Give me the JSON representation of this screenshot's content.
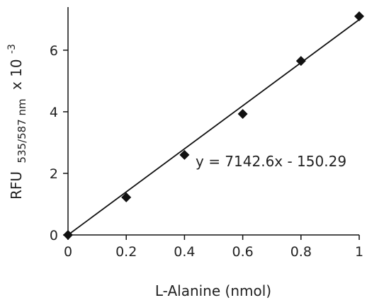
{
  "chart_data": {
    "type": "scatter",
    "title": "",
    "xlabel": "L-Alanine (nmol)",
    "ylabel": {
      "main": "RFU",
      "subscript": "535/587 nm",
      "suffix": "x 10",
      "superscript": "-3"
    },
    "xlim": [
      0,
      1
    ],
    "ylim": [
      0,
      7.4
    ],
    "xticks": [
      "0",
      "0.2",
      "0.4",
      "0.6",
      "0.8",
      "1"
    ],
    "yticks": [
      "0",
      "2",
      "4",
      "6"
    ],
    "grid": false,
    "legend": "none",
    "marker": "diamond",
    "colors": {
      "marker": "#111111",
      "line": "#111111",
      "axis": "#111111"
    },
    "series": [
      {
        "x": [
          0,
          0.2,
          0.4,
          0.6,
          0.8,
          1.0
        ],
        "y": [
          0.0,
          1.22,
          2.6,
          3.93,
          5.65,
          7.1
        ]
      }
    ],
    "trendline": {
      "type": "linear",
      "slope": 7142.6,
      "intercept": -150.29,
      "y_scale": 0.001,
      "x_range": [
        0,
        1
      ],
      "equation": "y = 7142.6x - 150.29"
    }
  }
}
